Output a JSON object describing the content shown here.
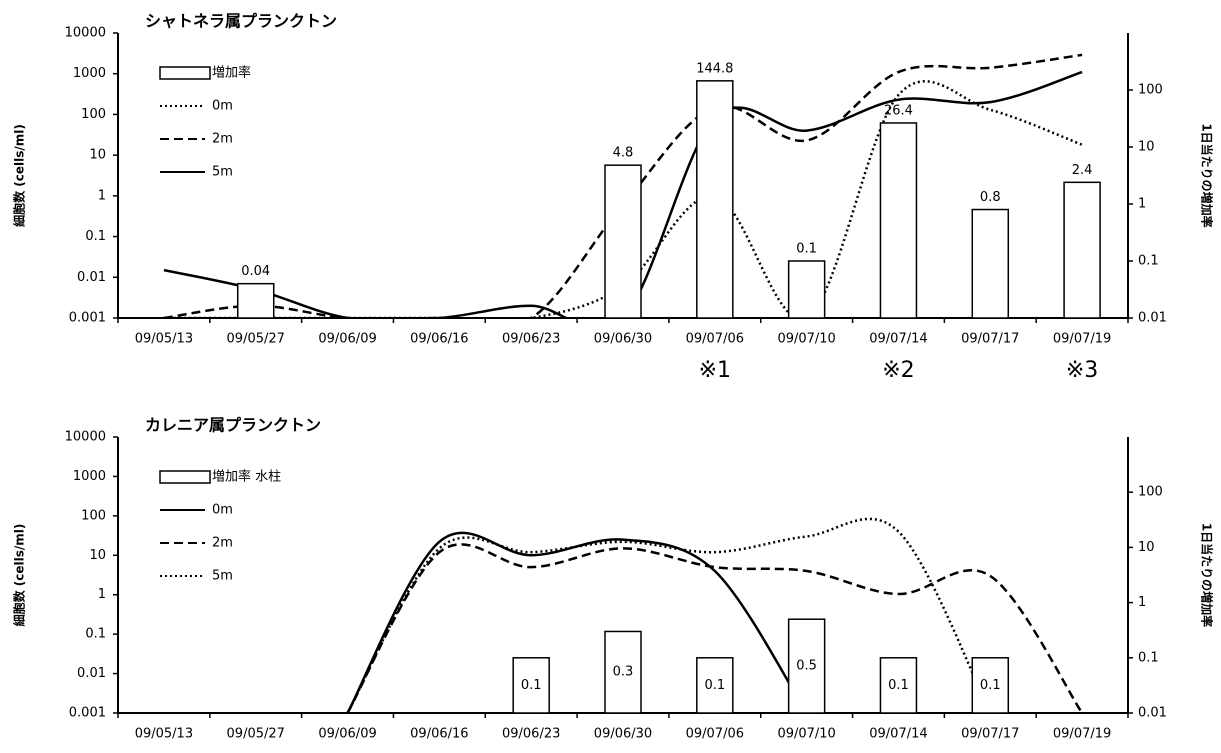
{
  "chart_data": [
    {
      "type": "combo",
      "title": "シャトネラ属プランクトン",
      "y_label": "細胞数 (cells/ml)",
      "y2_label": "1日当たりの増加率",
      "log_scale": true,
      "legend": "upper left",
      "categories": [
        "09/05/13",
        "09/05/27",
        "09/06/09",
        "09/06/16",
        "09/06/23",
        "09/06/30",
        "09/07/06",
        "09/07/10",
        "09/07/14",
        "09/07/17",
        "09/07/19"
      ],
      "ylim": [
        0.001,
        10000
      ],
      "yticks": [
        0.001,
        0.01,
        0.1,
        1,
        10,
        100,
        1000,
        10000
      ],
      "y2lim": [
        0.01,
        1000
      ],
      "y2ticks": [
        0.01,
        0.1,
        1,
        10,
        100
      ],
      "annotations": [
        "※1",
        "※2",
        "※3"
      ],
      "series": [
        {
          "name": "増加率",
          "type": "bar",
          "axis": "y2",
          "color": "#ffffff",
          "values": [
            null,
            0.04,
            null,
            null,
            null,
            4.8,
            144.8,
            0.1,
            26.4,
            0.8,
            2.4
          ]
        },
        {
          "name": "0m",
          "type": "line",
          "dash": "dotted",
          "color": "#000000",
          "values": [
            0.001,
            0.001,
            0.001,
            0.001,
            0.001,
            0.006,
            1,
            0.001,
            300,
            130,
            18
          ]
        },
        {
          "name": "2m",
          "type": "line",
          "dash": "dashed",
          "color": "#000000",
          "values": [
            0.001,
            0.002,
            0.001,
            0.001,
            0.001,
            0.6,
            150,
            23,
            1100,
            1400,
            2900
          ]
        },
        {
          "name": "5m",
          "type": "line",
          "dash": "solid",
          "color": "#000000",
          "values": [
            0.015,
            0.005,
            0.001,
            0.001,
            0.002,
            0.001,
            80,
            40,
            230,
            200,
            1100
          ]
        }
      ]
    },
    {
      "type": "combo",
      "title": "カレニア属プランクトン",
      "y_label": "細胞数 (cells/ml)",
      "y2_label": "1日当たりの増加率",
      "log_scale": true,
      "legend": "upper left",
      "categories": [
        "09/05/13",
        "09/05/27",
        "09/06/09",
        "09/06/16",
        "09/06/23",
        "09/06/30",
        "09/07/06",
        "09/07/10",
        "09/07/14",
        "09/07/17",
        "09/07/19"
      ],
      "ylim": [
        0.001,
        10000
      ],
      "yticks": [
        0.001,
        0.01,
        0.1,
        1,
        10,
        100,
        1000,
        10000
      ],
      "y2lim": [
        0.01,
        1000
      ],
      "y2ticks": [
        0.01,
        0.1,
        1,
        10,
        100
      ],
      "series": [
        {
          "name": "増加率 水柱",
          "type": "bar",
          "axis": "y2",
          "color": "#ffffff",
          "values": [
            null,
            null,
            null,
            null,
            0.1,
            0.3,
            0.1,
            0.5,
            0.1,
            0.1,
            null
          ]
        },
        {
          "name": "0m",
          "type": "line",
          "dash": "solid",
          "color": "#000000",
          "values": [
            null,
            null,
            0.001,
            22,
            10,
            25,
            4,
            0.001,
            null,
            null,
            null
          ]
        },
        {
          "name": "2m",
          "type": "line",
          "dash": "dashed",
          "color": "#000000",
          "values": [
            null,
            null,
            0.001,
            12,
            5,
            15,
            5,
            4,
            1.04,
            3,
            0.001
          ]
        },
        {
          "name": "5m",
          "type": "line",
          "dash": "dotted",
          "color": "#000000",
          "values": [
            null,
            null,
            0.001,
            15,
            12,
            22,
            12,
            30,
            40,
            0.001,
            null
          ]
        }
      ]
    }
  ]
}
